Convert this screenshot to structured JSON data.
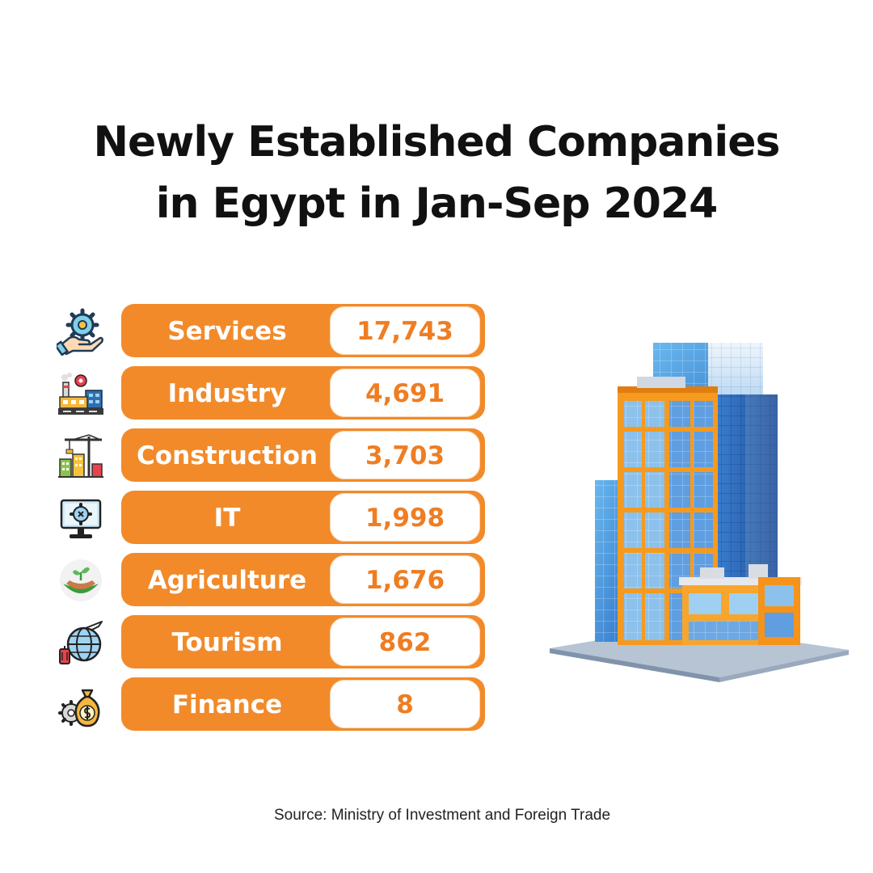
{
  "chart_data": {
    "type": "table",
    "title_lines": [
      "Newly Established Companies",
      "in Egypt in Jan-Sep 2024"
    ],
    "categories": [
      "Services",
      "Industry",
      "Construction",
      "IT",
      "Agriculture",
      "Tourism",
      "Finance"
    ],
    "value_labels": [
      "17,743",
      "4,691",
      "3,703",
      "1,998",
      "1,676",
      "862",
      "8"
    ],
    "values": [
      17743,
      4691,
      3703,
      1998,
      1676,
      862,
      8
    ],
    "icons": [
      "hand-gear-icon",
      "factory-icon",
      "crane-icon",
      "computer-gear-icon",
      "plant-hands-icon",
      "globe-plane-icon",
      "money-bag-gear-icon"
    ],
    "source": "Source: Ministry of Investment and Foreign Trade"
  },
  "colors": {
    "accent": "#f28a2a",
    "value_text": "#ef7d22",
    "title_text": "#111111"
  }
}
